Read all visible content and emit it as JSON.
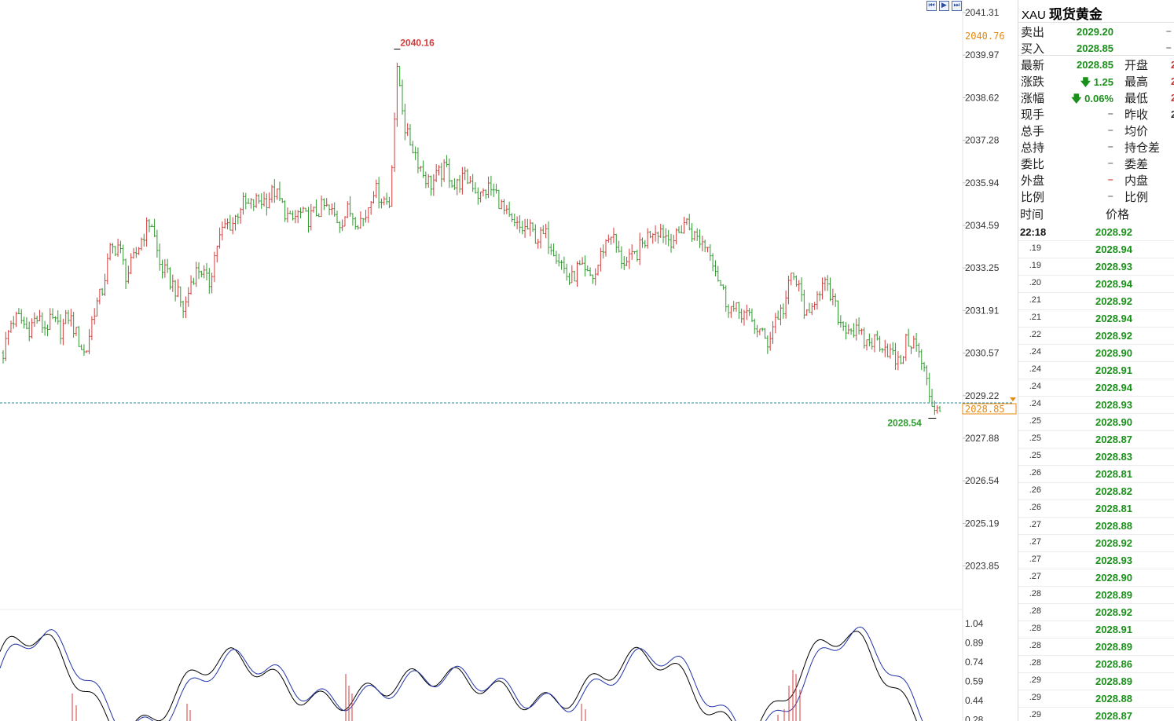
{
  "chart_data": {
    "type": "candlestick",
    "y_axis_ticks": [
      "2041.31",
      "2039.97",
      "2038.62",
      "2037.28",
      "2035.94",
      "2034.59",
      "2033.25",
      "2031.91",
      "2030.57",
      "2029.22",
      "2027.88",
      "2026.54",
      "2025.19",
      "2023.85"
    ],
    "ylim": [
      2022.5,
      2041.6
    ],
    "current_price_label": "2028.85",
    "upper_marker_label": "2040.76",
    "high_annotation": "2040.16",
    "low_annotation": "2028.54",
    "close_path": [
      2030.6,
      2031.6,
      2031.7,
      2031.3,
      2031.7,
      2031.4,
      2031.6,
      2031.3,
      2031.8,
      2031.1,
      2030.5,
      2031.9,
      2032.5,
      2033.8,
      2034.0,
      2033.0,
      2033.6,
      2034.3,
      2034.8,
      2033.4,
      2033.0,
      2032.6,
      2031.9,
      2033.0,
      2033.3,
      2032.7,
      2034.0,
      2034.6,
      2034.7,
      2035.3,
      2035.2,
      2035.4,
      2035.4,
      2035.7,
      2035.2,
      2034.7,
      2035.0,
      2034.8,
      2035.0,
      2035.2,
      2035.0,
      2034.7,
      2035.1,
      2034.8,
      2034.8,
      2035.8,
      2035.5,
      2035.3,
      2039.6,
      2037.5,
      2037.0,
      2036.3,
      2035.9,
      2036.2,
      2036.4,
      2035.8,
      2036.1,
      2036.0,
      2035.5,
      2035.8,
      2035.6,
      2035.0,
      2034.6,
      2034.5,
      2034.5,
      2034.2,
      2034.3,
      2033.9,
      2033.4,
      2032.8,
      2033.3,
      2033.0,
      2033.0,
      2033.9,
      2034.4,
      2033.6,
      2033.4,
      2033.7,
      2034.1,
      2034.5,
      2034.5,
      2034.2,
      2034.2,
      2034.8,
      2034.3,
      2034.1,
      2033.9,
      2033.0,
      2032.2,
      2031.9,
      2031.9,
      2031.6,
      2031.3,
      2030.9,
      2031.7,
      2032.0,
      2033.1,
      2032.5,
      2031.5,
      2032.6,
      2032.7,
      2032.2,
      2031.5,
      2031.4,
      2031.2,
      2030.9,
      2031.0,
      2030.9,
      2030.6,
      2030.2,
      2031.0,
      2030.9,
      2030.1,
      2029.0,
      2028.85
    ],
    "indicator_ticks": [
      "1.04",
      "0.89",
      "0.74",
      "0.59",
      "0.44",
      "0.28"
    ],
    "colors": {
      "up": "#d33b3b",
      "down": "#2f9a2f",
      "grid": "#eeeeee",
      "axis_text": "#333333",
      "price_line": "#2b8a99",
      "marker": "#e8890c",
      "osc_a": "#000000",
      "osc_b": "#2233aa"
    }
  },
  "toolbar": {
    "icons": [
      "frame-start-icon",
      "frame-play-icon",
      "frame-end-icon"
    ]
  },
  "panel": {
    "code": "XAU",
    "name": "现货黄金",
    "quotes": [
      {
        "label": "卖出",
        "value": "2029.20",
        "color": "green",
        "dash": "–",
        "label2": "",
        "cut": ""
      },
      {
        "label": "买入",
        "value": "2028.85",
        "color": "green",
        "dash": "–",
        "label2": "",
        "cut": ""
      },
      {
        "label": "最新",
        "value": "2028.85",
        "color": "green",
        "dash": "",
        "label2": "开盘",
        "cut": "2"
      },
      {
        "label": "涨跌",
        "value": "🡇 1.25",
        "color": "green",
        "dash": "",
        "label2": "最高",
        "cut": "2"
      },
      {
        "label": "涨幅",
        "value": "🡇 0.06%",
        "color": "green",
        "dash": "",
        "label2": "最低",
        "cut": "2"
      },
      {
        "label": "现手",
        "value": "",
        "color": "",
        "dash": "–",
        "label2": "昨收",
        "cut": "2"
      },
      {
        "label": "总手",
        "value": "",
        "color": "",
        "dash": "–",
        "label2": "均价",
        "cut": ""
      },
      {
        "label": "总持",
        "value": "",
        "color": "",
        "dash": "–",
        "label2": "持仓差",
        "cut": ""
      },
      {
        "label": "委比",
        "value": "",
        "color": "",
        "dash": "–",
        "label2": "委差",
        "cut": ""
      },
      {
        "label": "外盘",
        "value": "",
        "color": "",
        "dash": "–",
        "label2": "内盘",
        "cut": ""
      },
      {
        "label": "比例",
        "value": "",
        "color": "",
        "dash": "–",
        "label2": "比例",
        "cut": ""
      }
    ],
    "ticks_header": {
      "time": "时间",
      "price": "价格"
    },
    "ticks": [
      {
        "time": "22:18",
        "price": "2028.92"
      },
      {
        "time": ".19",
        "price": "2028.94"
      },
      {
        "time": ".19",
        "price": "2028.93"
      },
      {
        "time": ".20",
        "price": "2028.94"
      },
      {
        "time": ".21",
        "price": "2028.92"
      },
      {
        "time": ".21",
        "price": "2028.94"
      },
      {
        "time": ".22",
        "price": "2028.92"
      },
      {
        "time": ".24",
        "price": "2028.90"
      },
      {
        "time": ".24",
        "price": "2028.91"
      },
      {
        "time": ".24",
        "price": "2028.94"
      },
      {
        "time": ".24",
        "price": "2028.93"
      },
      {
        "time": ".25",
        "price": "2028.90"
      },
      {
        "time": ".25",
        "price": "2028.87"
      },
      {
        "time": ".25",
        "price": "2028.83"
      },
      {
        "time": ".26",
        "price": "2028.81"
      },
      {
        "time": ".26",
        "price": "2028.82"
      },
      {
        "time": ".26",
        "price": "2028.81"
      },
      {
        "time": ".27",
        "price": "2028.88"
      },
      {
        "time": ".27",
        "price": "2028.92"
      },
      {
        "time": ".27",
        "price": "2028.93"
      },
      {
        "time": ".27",
        "price": "2028.90"
      },
      {
        "time": ".28",
        "price": "2028.89"
      },
      {
        "time": ".28",
        "price": "2028.92"
      },
      {
        "time": ".28",
        "price": "2028.91"
      },
      {
        "time": ".28",
        "price": "2028.89"
      },
      {
        "time": ".28",
        "price": "2028.86"
      },
      {
        "time": ".29",
        "price": "2028.89"
      },
      {
        "time": ".29",
        "price": "2028.88"
      },
      {
        "time": ".29",
        "price": "2028.87"
      }
    ]
  }
}
